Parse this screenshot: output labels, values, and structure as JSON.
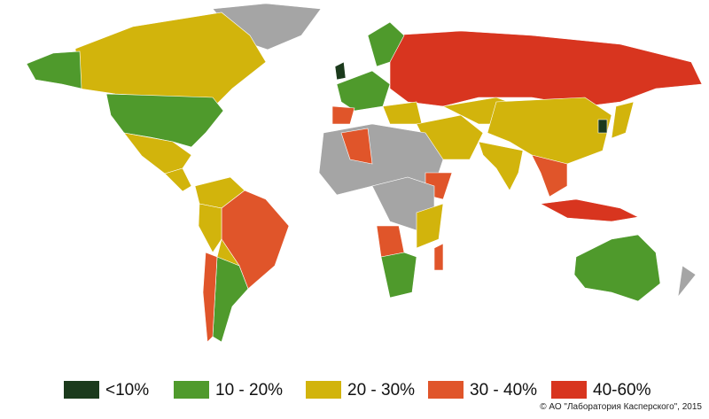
{
  "legend": [
    {
      "label": "<10%",
      "color": "#1b3a1c"
    },
    {
      "label": "10 - 20%",
      "color": "#4f9a2c"
    },
    {
      "label": "20 - 30%",
      "color": "#d2b40c"
    },
    {
      "label": "30 - 40%",
      "color": "#e0552a"
    },
    {
      "label": "40-60%",
      "color": "#d8351f"
    }
  ],
  "copyright": "© АО \"Лаборатория Касперского\", 2015"
}
